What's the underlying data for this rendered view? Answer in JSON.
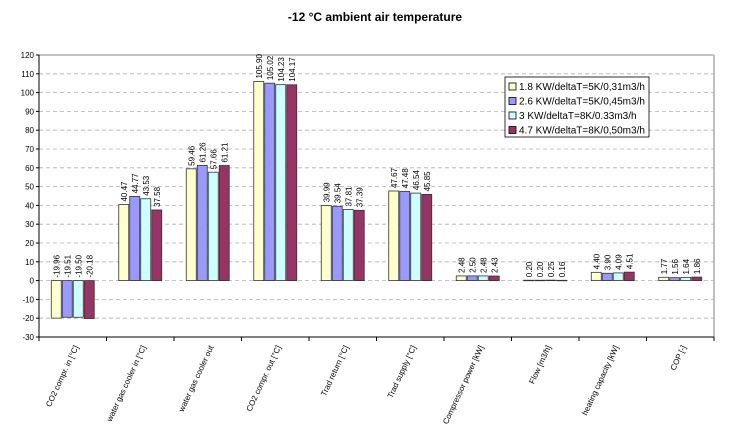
{
  "chart_data": {
    "type": "bar",
    "title": "-12 °C ambient air temperature",
    "xlabel": "",
    "ylabel": "",
    "ylim": [
      -30,
      120
    ],
    "ytick_step": 10,
    "grid": true,
    "legend_position": "top-right",
    "categories": [
      "CO2 compr. in [°C]",
      "water gas cooler in [°C]",
      "water gas cooler out",
      "CO2 compr. out [°C]",
      "Trad return [°C]",
      "Trad supply [°C]",
      "Compressor power [kW]",
      "Flow [m3/h]",
      "heating capacity [kW]",
      "COP [-]"
    ],
    "series": [
      {
        "name": "1.8 KW/deltaT=5K/0,31m3/h",
        "color": "#ffffcc",
        "values": [
          -19.96,
          40.47,
          59.46,
          105.9,
          39.99,
          47.67,
          2.48,
          0.2,
          4.4,
          1.77
        ]
      },
      {
        "name": "2.6 KW/deltaT=5K/0,45m3/h",
        "color": "#9999ff",
        "values": [
          -19.51,
          44.77,
          61.26,
          105.02,
          39.54,
          47.48,
          2.5,
          0.2,
          3.9,
          1.56
        ]
      },
      {
        "name": "3 KW/deltaT=8K/0.33m3/h",
        "color": "#ccffff",
        "values": [
          -19.5,
          43.53,
          57.66,
          104.23,
          37.81,
          46.54,
          2.48,
          0.25,
          4.09,
          1.64
        ]
      },
      {
        "name": "4.7 KW/deltaT=8K/0,50m3/h",
        "color": "#993366",
        "values": [
          -20.18,
          37.58,
          61.21,
          104.17,
          37.39,
          45.85,
          2.43,
          0.16,
          4.51,
          1.86
        ]
      }
    ]
  }
}
